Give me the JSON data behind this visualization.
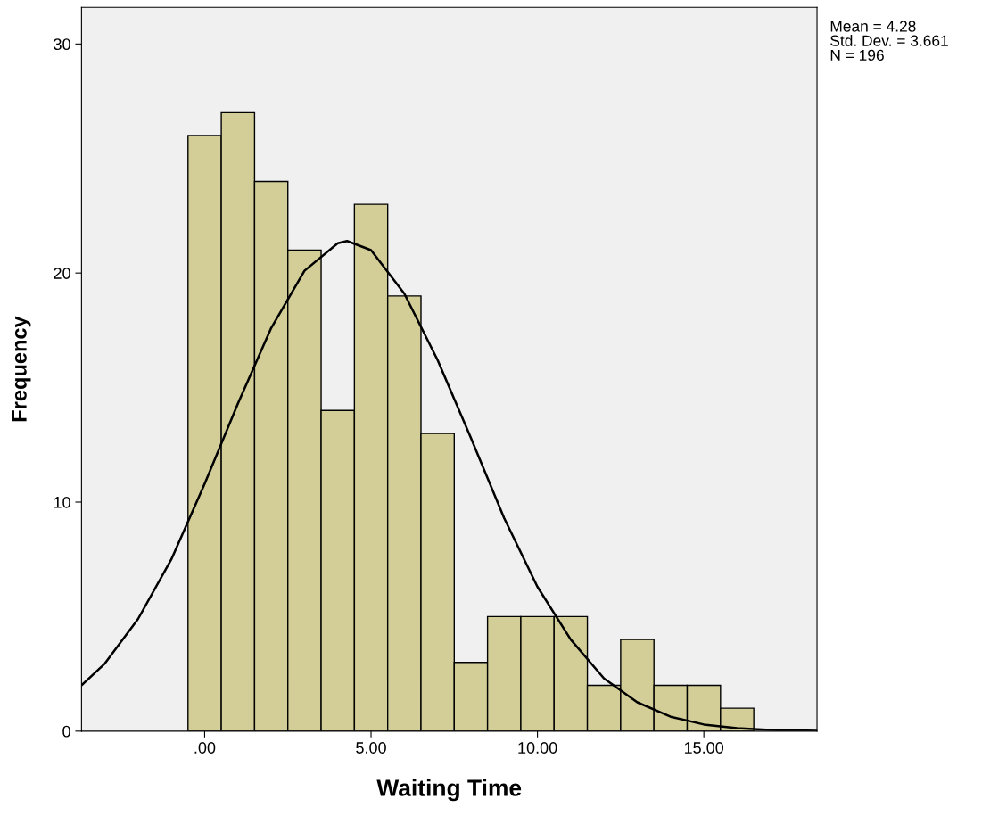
{
  "chart_data": {
    "type": "histogram",
    "xlabel": "Waiting Time",
    "ylabel": "Frequency",
    "bins": [
      -0.5,
      0.5,
      1.5,
      2.5,
      3.5,
      4.5,
      5.5,
      6.5,
      7.5,
      8.5,
      9.5,
      10.5,
      11.5,
      12.5,
      13.5,
      14.5,
      15.5,
      16.5
    ],
    "values": [
      26,
      27,
      24,
      21,
      14,
      23,
      19,
      13,
      3,
      5,
      5,
      5,
      2,
      4,
      2,
      2,
      1
    ],
    "color": "#d3ce97",
    "series": [
      {
        "type": "line",
        "color": "#000000",
        "x": [
          -3.7,
          -3,
          -2,
          -1,
          0,
          1,
          2,
          3,
          4,
          4.28,
          5,
          6,
          7,
          8,
          9,
          10,
          11,
          12,
          13,
          14,
          15,
          16,
          17,
          18.4
        ],
        "values": [
          2.0,
          2.95,
          4.9,
          7.5,
          10.8,
          14.3,
          17.6,
          20.1,
          21.3,
          21.4,
          21.0,
          19.1,
          16.2,
          12.8,
          9.3,
          6.3,
          4.0,
          2.3,
          1.26,
          0.63,
          0.29,
          0.13,
          0.05,
          0.01
        ]
      }
    ],
    "xlim": [
      -3.7,
      18.4
    ],
    "ylim": [
      0,
      31.6
    ],
    "xticks": [
      {
        "value": 0,
        "label": ".00"
      },
      {
        "value": 5,
        "label": "5.00"
      },
      {
        "value": 10,
        "label": "10.00"
      },
      {
        "value": 15,
        "label": "15.00"
      }
    ],
    "yticks": [
      0,
      10,
      20,
      30
    ],
    "grid": false,
    "legend": false,
    "annotations": [
      "Mean = 4.28\nStd. Dev. = 3.661\nN = 196"
    ]
  }
}
